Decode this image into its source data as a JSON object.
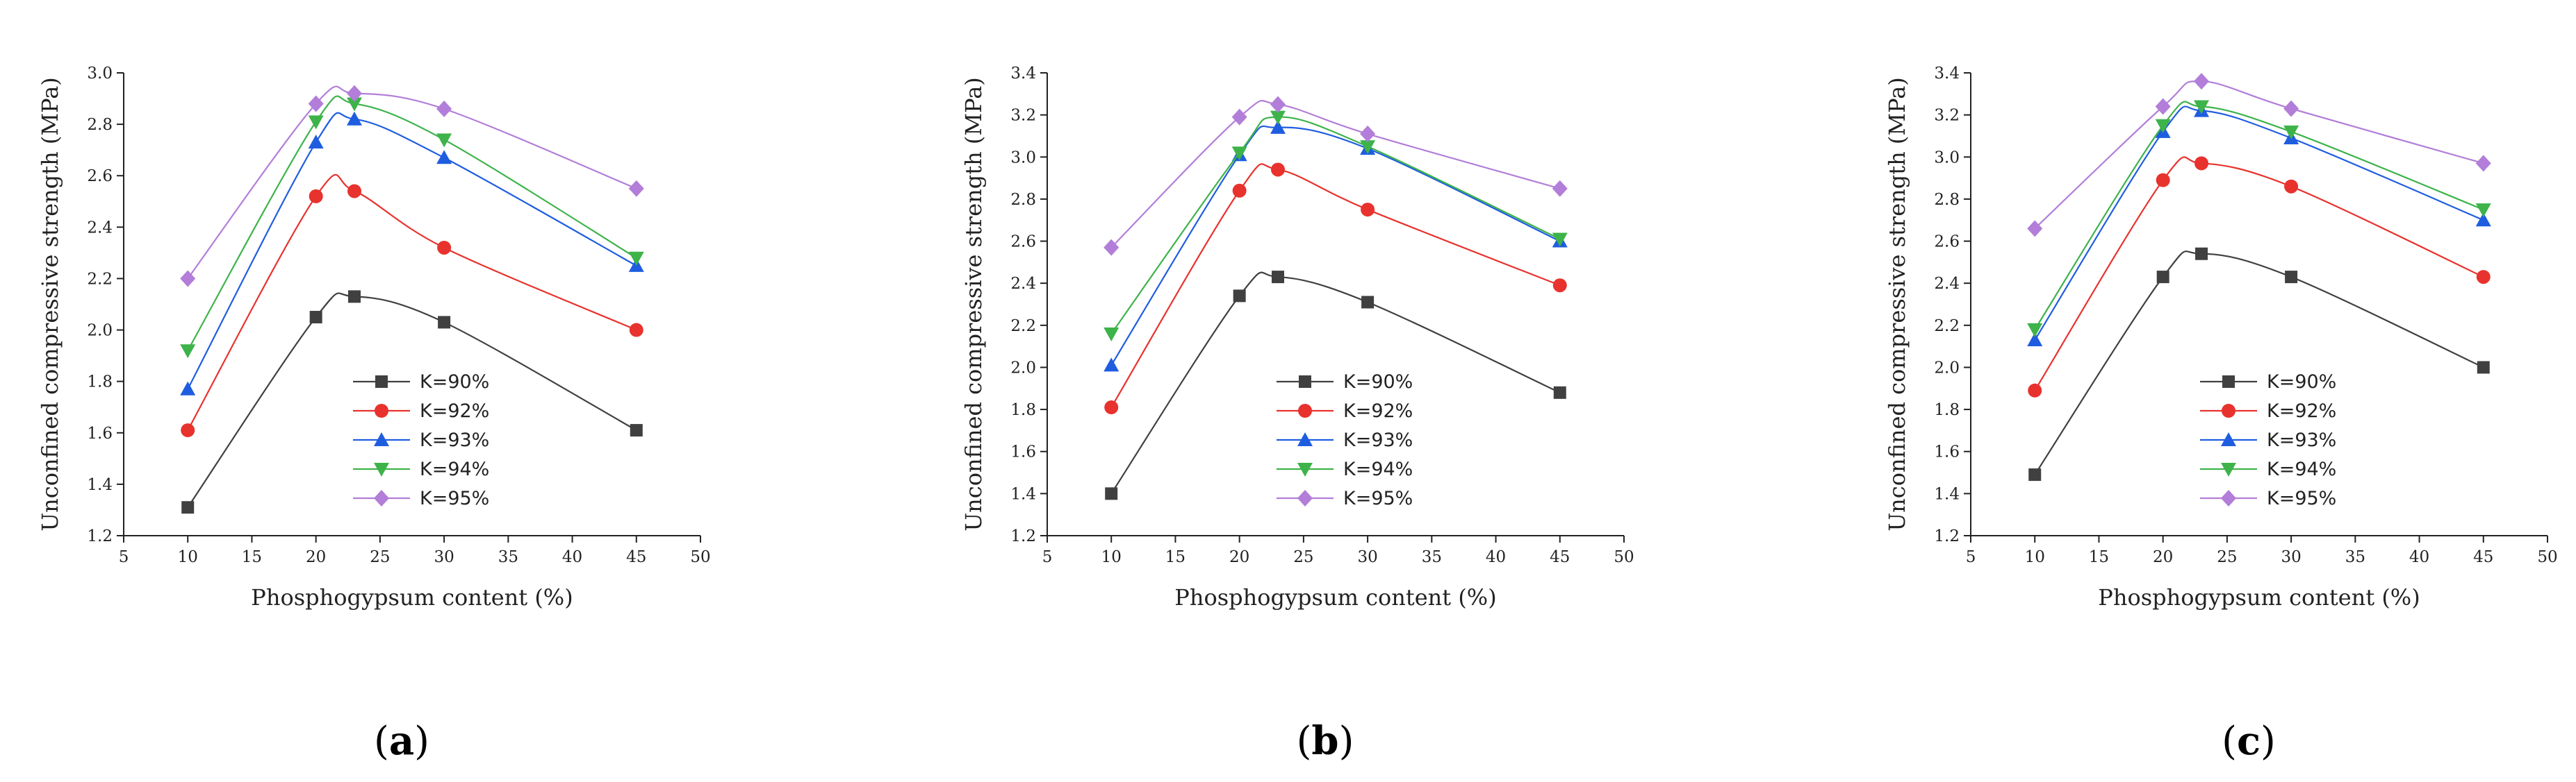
{
  "figure": {
    "panel_labels": [
      "(a)",
      "(b)",
      "(c)"
    ]
  },
  "series_styles": [
    {
      "name": "K=90%",
      "color": "#404040",
      "marker": "square"
    },
    {
      "name": "K=92%",
      "color": "#e8322d",
      "marker": "circle"
    },
    {
      "name": "K=93%",
      "color": "#1f5de0",
      "marker": "triangle-up"
    },
    {
      "name": "K=94%",
      "color": "#3db34a",
      "marker": "triangle-down"
    },
    {
      "name": "K=95%",
      "color": "#b27ed9",
      "marker": "diamond"
    }
  ],
  "chart_data": [
    {
      "type": "line",
      "panel": "(a)",
      "xlabel": "Phosphogypsum content (%)",
      "ylabel": "Unconfined compressive strength (MPa)",
      "xlim": [
        5,
        50
      ],
      "ylim": [
        1.2,
        3.0
      ],
      "xticks": [
        5,
        10,
        15,
        20,
        25,
        30,
        35,
        40,
        45,
        50
      ],
      "yticks": [
        "1.2",
        "1.4",
        "1.6",
        "1.8",
        "2.0",
        "2.2",
        "2.4",
        "2.6",
        "2.8",
        "3.0"
      ],
      "x": [
        10,
        20,
        23,
        30,
        45
      ],
      "series": [
        {
          "name": "K=90%",
          "values": [
            1.31,
            2.05,
            2.13,
            2.03,
            1.61
          ]
        },
        {
          "name": "K=92%",
          "values": [
            1.61,
            2.52,
            2.54,
            2.32,
            2.0
          ]
        },
        {
          "name": "K=93%",
          "values": [
            1.77,
            2.73,
            2.82,
            2.67,
            2.25
          ]
        },
        {
          "name": "K=94%",
          "values": [
            1.92,
            2.81,
            2.88,
            2.74,
            2.28
          ]
        },
        {
          "name": "K=95%",
          "values": [
            2.2,
            2.88,
            2.92,
            2.86,
            2.55
          ]
        }
      ],
      "legend": "lower-center"
    },
    {
      "type": "line",
      "panel": "(b)",
      "xlabel": "Phosphogypsum content (%)",
      "ylabel": "Unconfined compressive strength (MPa)",
      "xlim": [
        5,
        50
      ],
      "ylim": [
        1.2,
        3.4
      ],
      "xticks": [
        5,
        10,
        15,
        20,
        25,
        30,
        35,
        40,
        45,
        50
      ],
      "yticks": [
        "1.2",
        "1.4",
        "1.6",
        "1.8",
        "2.0",
        "2.2",
        "2.4",
        "2.6",
        "2.8",
        "3.0",
        "3.2",
        "3.4"
      ],
      "x": [
        10,
        20,
        23,
        30,
        45
      ],
      "series": [
        {
          "name": "K=90%",
          "values": [
            1.4,
            2.34,
            2.43,
            2.31,
            1.88
          ]
        },
        {
          "name": "K=92%",
          "values": [
            1.81,
            2.84,
            2.94,
            2.75,
            2.39
          ]
        },
        {
          "name": "K=93%",
          "values": [
            2.01,
            3.01,
            3.14,
            3.04,
            2.6
          ]
        },
        {
          "name": "K=94%",
          "values": [
            2.16,
            3.02,
            3.19,
            3.05,
            2.61
          ]
        },
        {
          "name": "K=95%",
          "values": [
            2.57,
            3.19,
            3.25,
            3.11,
            2.85
          ]
        }
      ],
      "legend": "lower-center"
    },
    {
      "type": "line",
      "panel": "(c)",
      "xlabel": "Phosphogypsum content (%)",
      "ylabel": "Unconfined compressive strength (MPa)",
      "xlim": [
        5,
        50
      ],
      "ylim": [
        1.2,
        3.4
      ],
      "xticks": [
        5,
        10,
        15,
        20,
        25,
        30,
        35,
        40,
        45,
        50
      ],
      "yticks": [
        "1.2",
        "1.4",
        "1.6",
        "1.8",
        "2.0",
        "2.2",
        "2.4",
        "2.6",
        "2.8",
        "3.0",
        "3.2",
        "3.4"
      ],
      "x": [
        10,
        20,
        23,
        30,
        45
      ],
      "series": [
        {
          "name": "K=90%",
          "values": [
            1.49,
            2.43,
            2.54,
            2.43,
            2.0
          ]
        },
        {
          "name": "K=92%",
          "values": [
            1.89,
            2.89,
            2.97,
            2.86,
            2.43
          ]
        },
        {
          "name": "K=93%",
          "values": [
            2.13,
            3.12,
            3.22,
            3.09,
            2.7
          ]
        },
        {
          "name": "K=94%",
          "values": [
            2.18,
            3.15,
            3.24,
            3.12,
            2.75
          ]
        },
        {
          "name": "K=95%",
          "values": [
            2.66,
            3.24,
            3.36,
            3.23,
            2.97
          ]
        }
      ],
      "legend": "lower-center"
    }
  ]
}
